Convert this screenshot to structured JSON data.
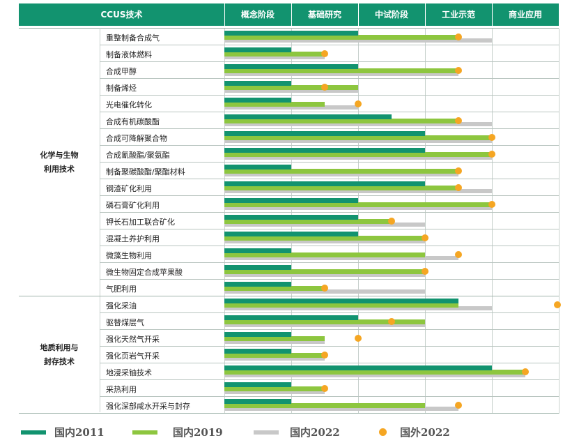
{
  "colors": {
    "header_bg": "#12936f",
    "domestic_2011": "#12936f",
    "domestic_2019": "#8dc63f",
    "domestic_2022": "#c8c8c8",
    "foreign_2022": "#f5a623"
  },
  "header": {
    "title": "CCUS技术",
    "stages": [
      "概念阶段",
      "基础研究",
      "中试阶段",
      "工业示范",
      "商业应用"
    ]
  },
  "chart_data": {
    "type": "bar",
    "orientation": "horizontal",
    "scale_note": "stage scale 0–5: 0 = start of 概念阶段, 1 = 概念阶段 complete, 2 = 基础研究 complete, 3 = 中试阶段 complete, 4 = 工业示范 complete, 5 = 商业应用 complete",
    "xlim": [
      0,
      5
    ],
    "groups": [
      {
        "name": "化学与生物\n利用技术",
        "categories": [
          "重整制备合成气",
          "制备液体燃料",
          "合成甲醇",
          "制备烯烃",
          "光电催化转化",
          "合成有机碳酸酯",
          "合成可降解聚合物",
          "合成氰酸酯/聚氨酯",
          "制备聚碳酸酯/聚酯材料",
          "钢渣矿化利用",
          "磷石膏矿化利用",
          "钾长石加工联合矿化",
          "混凝土养护利用",
          "微藻生物利用",
          "微生物固定合成苹果酸",
          "气肥利用"
        ]
      },
      {
        "name": "地质利用与\n封存技术",
        "categories": [
          "强化采油",
          "驱替煤层气",
          "强化天然气开采",
          "强化页岩气开采",
          "地浸采铀技术",
          "采热利用",
          "强化深部咸水开采与封存"
        ]
      }
    ],
    "series": [
      {
        "name": "国内2011",
        "values": [
          2.0,
          1.0,
          2.0,
          1.0,
          1.0,
          2.5,
          3.0,
          3.0,
          1.0,
          3.0,
          2.0,
          2.0,
          2.0,
          1.0,
          1.0,
          1.0,
          3.5,
          2.0,
          1.0,
          1.0,
          4.0,
          1.0,
          1.0
        ]
      },
      {
        "name": "国内2019",
        "values": [
          3.5,
          1.5,
          3.5,
          2.0,
          1.5,
          3.5,
          4.0,
          4.0,
          3.5,
          3.5,
          4.0,
          2.5,
          3.0,
          3.0,
          3.0,
          1.5,
          3.5,
          3.0,
          1.5,
          1.5,
          4.5,
          1.5,
          3.0
        ]
      },
      {
        "name": "国内2022",
        "values": [
          4.0,
          1.5,
          3.5,
          2.0,
          2.0,
          4.0,
          4.0,
          4.0,
          3.5,
          4.0,
          4.0,
          3.0,
          3.0,
          3.5,
          3.0,
          3.0,
          4.0,
          3.0,
          1.5,
          1.5,
          4.5,
          1.5,
          3.5
        ]
      },
      {
        "name": "国外2022",
        "marker": "dot",
        "values": [
          3.5,
          1.5,
          3.5,
          1.5,
          2.0,
          3.5,
          4.0,
          4.0,
          3.5,
          3.5,
          4.0,
          2.5,
          3.0,
          3.5,
          3.0,
          1.5,
          5.0,
          2.5,
          2.0,
          1.5,
          4.5,
          1.5,
          3.5
        ]
      }
    ],
    "legend": "bottom"
  }
}
